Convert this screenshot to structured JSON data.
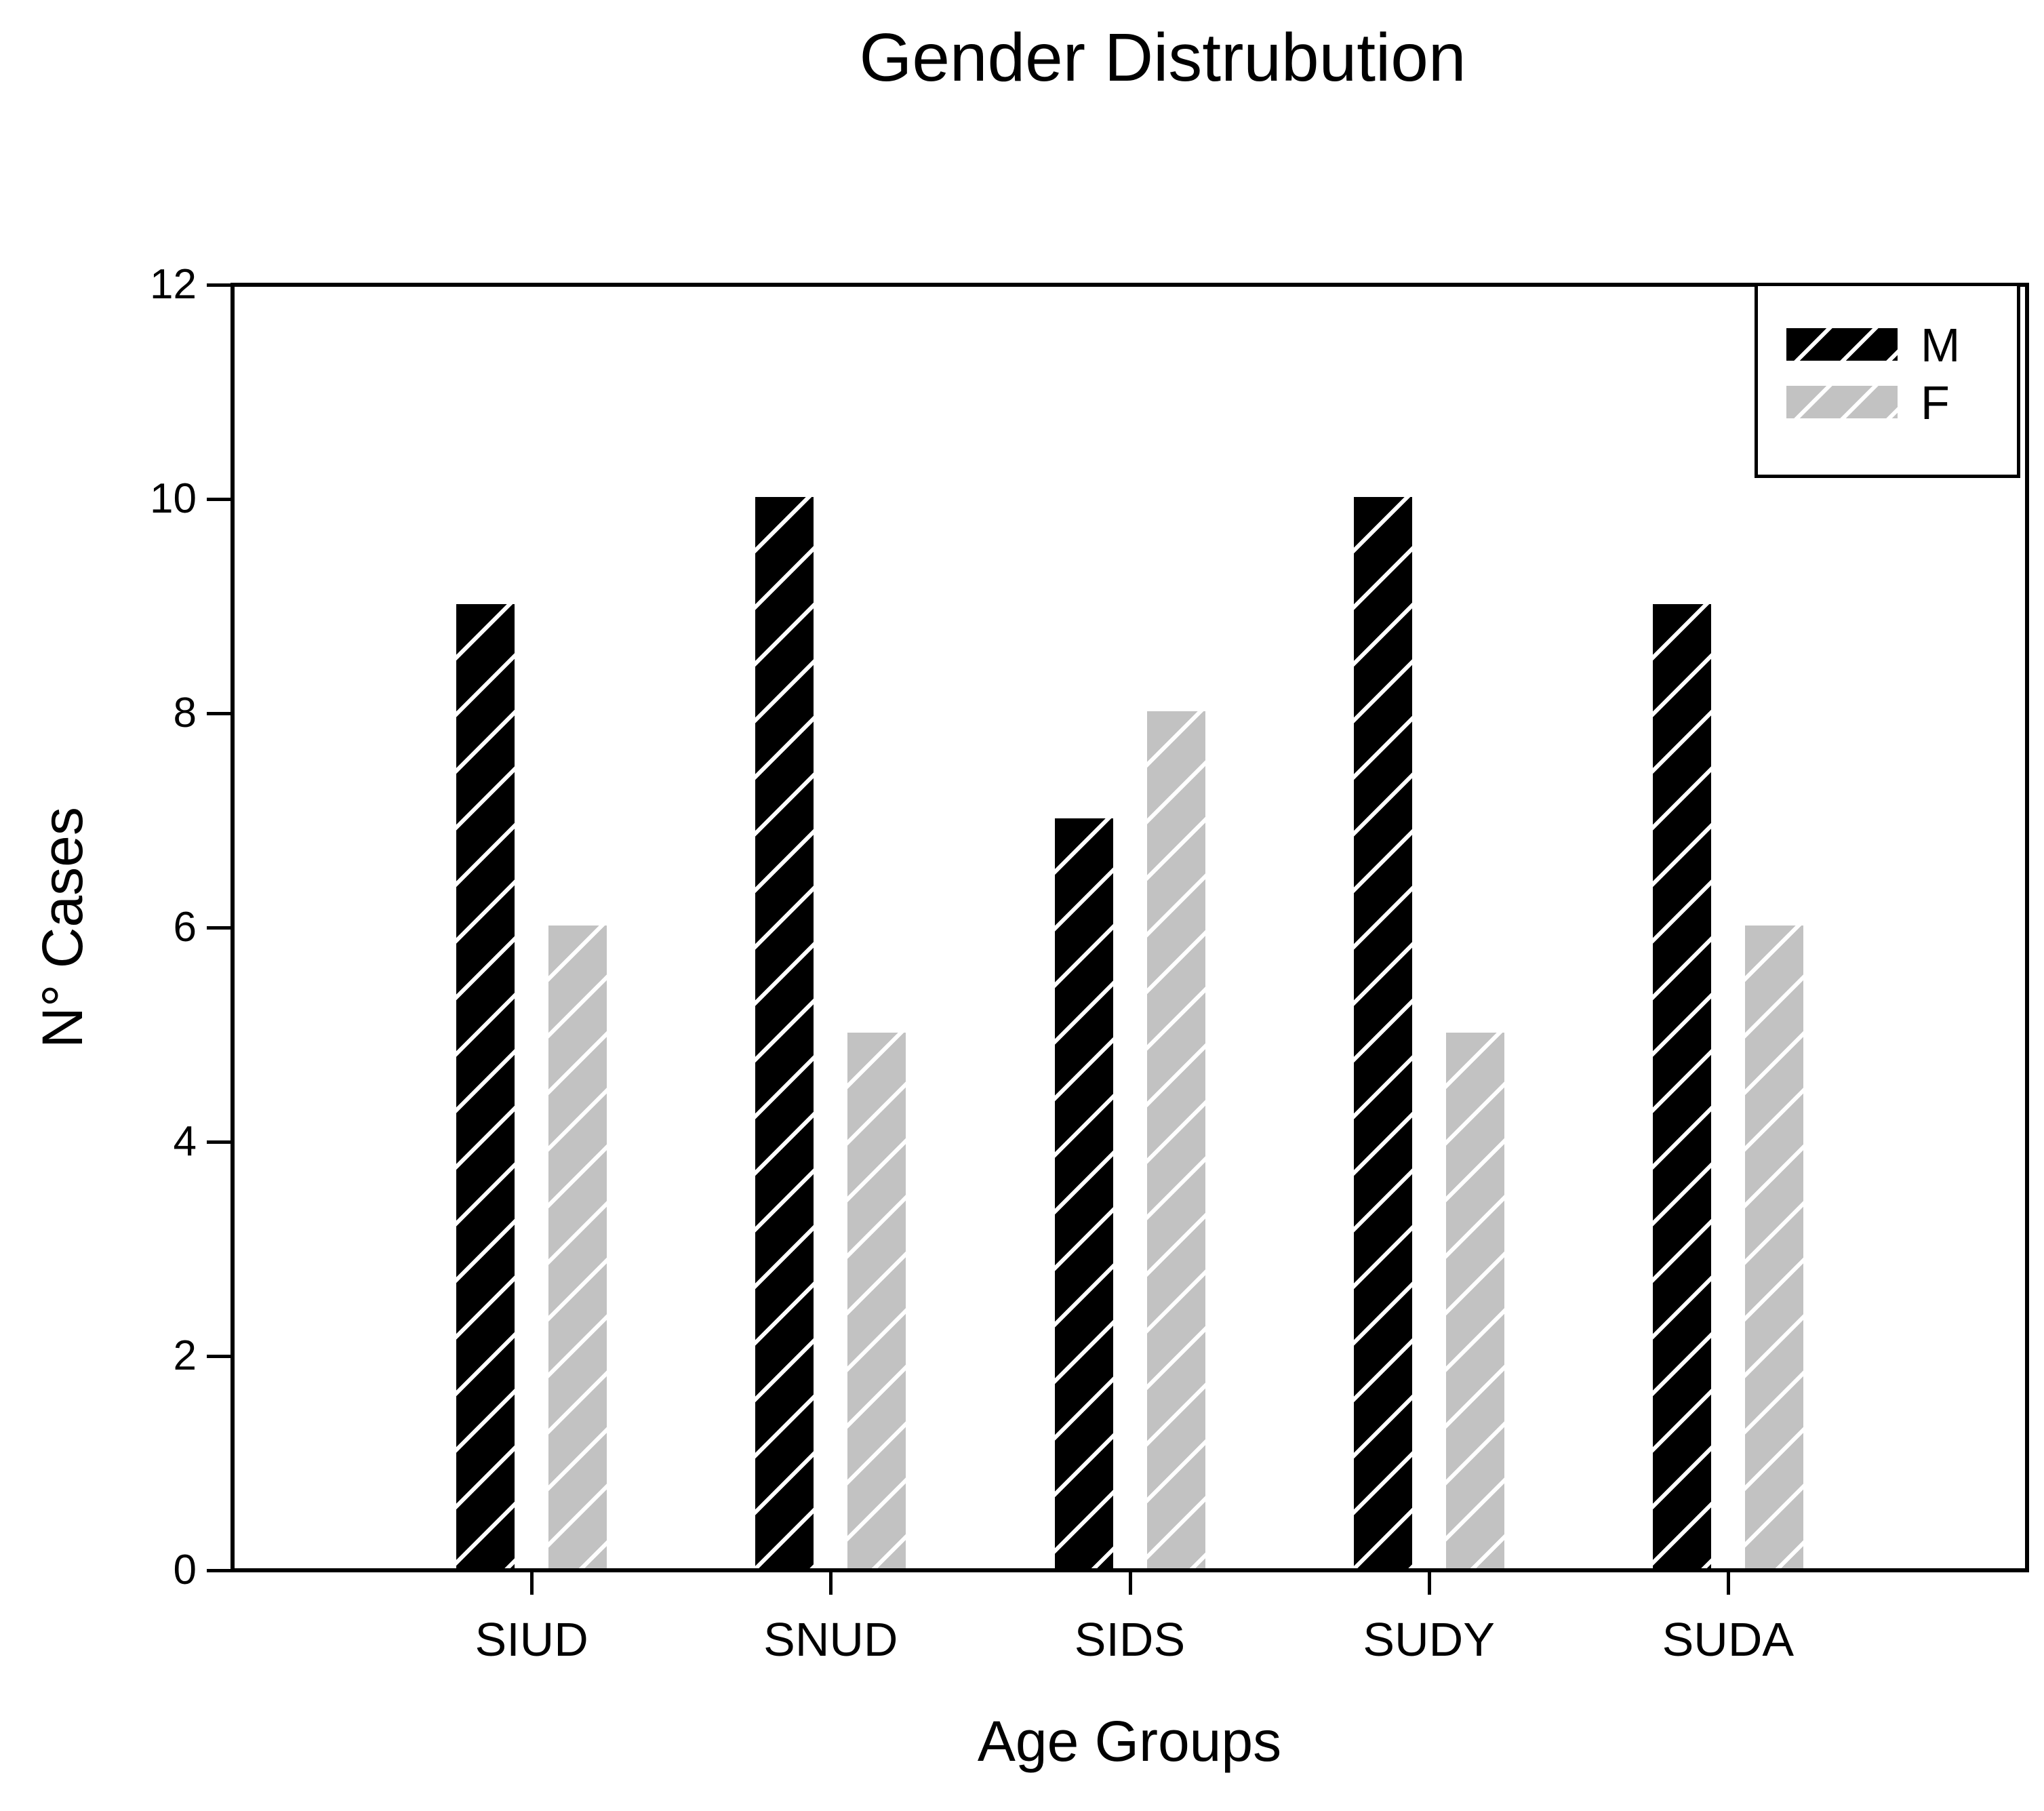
{
  "title": "Gender Distrubution",
  "chart_data": {
    "type": "bar",
    "title": "Gender Distrubution",
    "categories": [
      "SIUD",
      "SNUD",
      "SIDS",
      "SUDY",
      "SUDA"
    ],
    "series": [
      {
        "name": "M",
        "values": [
          9,
          10,
          7,
          10,
          9
        ],
        "color": "#000000",
        "hatch": "/"
      },
      {
        "name": "F",
        "values": [
          6,
          5,
          8,
          5,
          6
        ],
        "color": "#c2c2c2",
        "hatch": "/"
      }
    ],
    "xlabel": "Age Groups",
    "ylabel": "N° Cases",
    "ylim": [
      0,
      12
    ],
    "yticks": [
      0,
      2,
      4,
      6,
      8,
      10,
      12
    ],
    "grid": false,
    "legend_position": "top-right",
    "background_color": "#ffffff",
    "text_color": "#000000"
  }
}
